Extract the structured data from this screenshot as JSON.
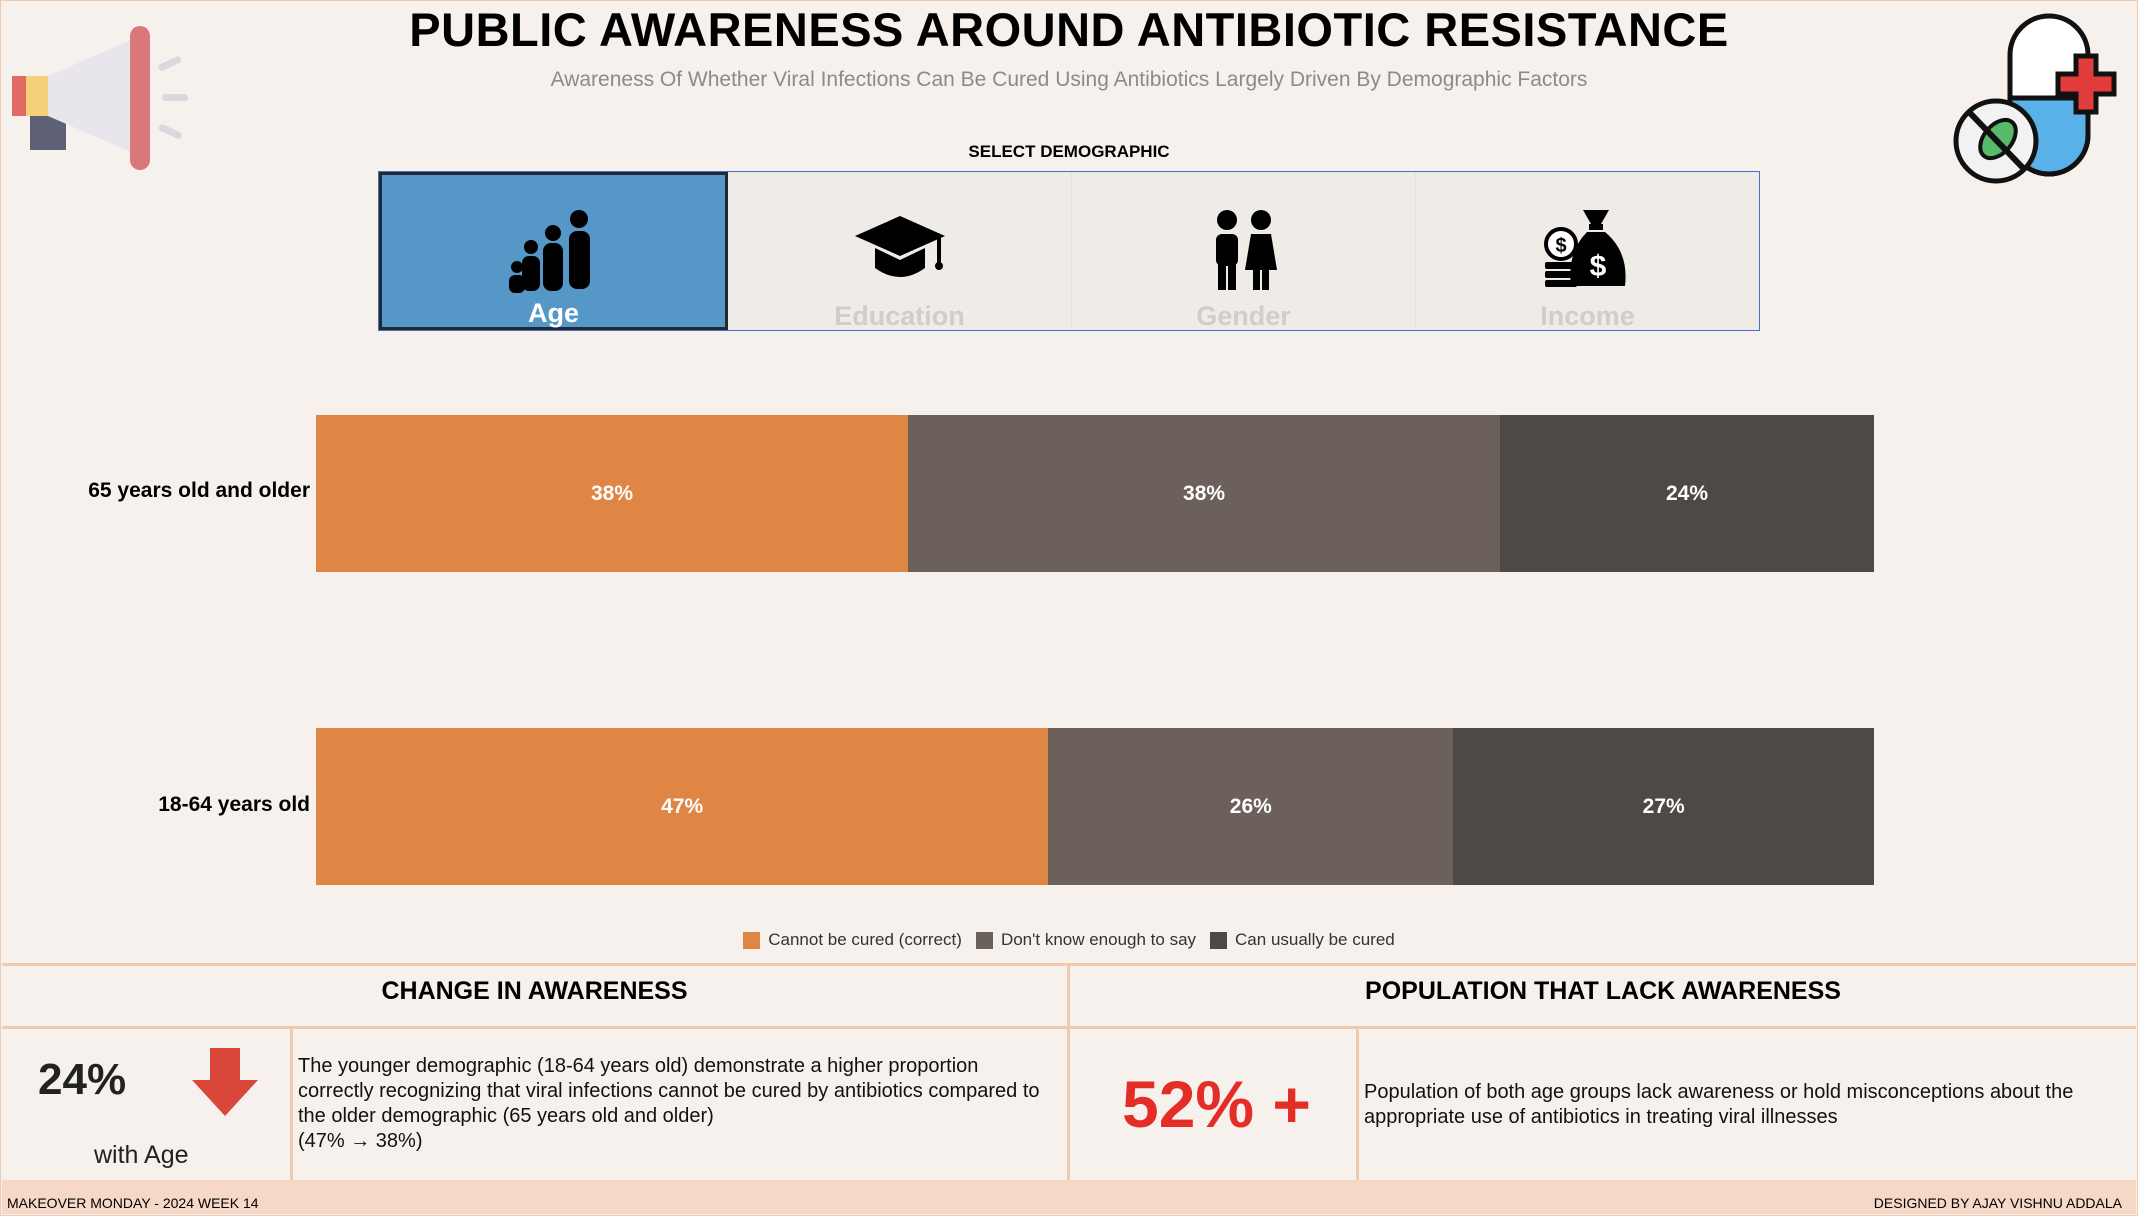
{
  "header": {
    "title": "PUBLIC AWARENESS AROUND ANTIBIOTIC RESISTANCE",
    "subtitle": "Awareness Of Whether Viral Infections Can Be Cured Using Antibiotics Largely Driven By Demographic Factors"
  },
  "icons": {
    "left": "megaphone-icon",
    "right": "antibiotic-capsule-icon",
    "colors": {
      "megaphone": "#d9777a",
      "capsule_blue": "#58b1e8",
      "cross": "#e23b3b"
    }
  },
  "selector": {
    "label": "SELECT DEMOGRAPHIC",
    "tabs": [
      {
        "label": "Age",
        "icon": "family-icon",
        "active": true
      },
      {
        "label": "Education",
        "icon": "graduation-cap-icon",
        "active": false
      },
      {
        "label": "Gender",
        "icon": "gender-icon",
        "active": false
      },
      {
        "label": "Income",
        "icon": "money-bag-icon",
        "active": false
      }
    ]
  },
  "chart_data": {
    "type": "bar",
    "orientation": "horizontal",
    "stacked": true,
    "percent": true,
    "categories": [
      "65 years old and older",
      "18-64 years old"
    ],
    "series": [
      {
        "name": "Cannot be cured (correct)",
        "color": "#e08644",
        "values": [
          38,
          47
        ]
      },
      {
        "name": "Don't know enough to say",
        "color": "#6b605a",
        "values": [
          38,
          26
        ]
      },
      {
        "name": "Can usually be cured",
        "color": "#4e4944",
        "values": [
          24,
          27
        ]
      }
    ],
    "xlim": [
      0,
      100
    ],
    "grid": false,
    "legend": "bottom"
  },
  "panels": {
    "change": {
      "title": "CHANGE IN AWARENESS",
      "value": "24%",
      "caption": "with Age",
      "arrow": "down-arrow-icon",
      "arrow_color": "#d9473a",
      "text": "The younger demographic (18-64 years old) demonstrate a higher proportion correctly recognizing that viral infections cannot be cured by antibiotics compared to the older demographic (65 years old and older)",
      "text2": "(47% → 38%)"
    },
    "lack": {
      "title": "POPULATION THAT LACK AWARENESS",
      "value": "52% +",
      "value_color": "#e52d27",
      "text": "Population of both age groups lack awareness or hold misconceptions about the appropriate use of antibiotics in treating viral illnesses"
    }
  },
  "footer": {
    "left": "MAKEOVER MONDAY - 2024 WEEK 14",
    "right": "DESIGNED BY AJAY VISHNU ADDALA"
  }
}
